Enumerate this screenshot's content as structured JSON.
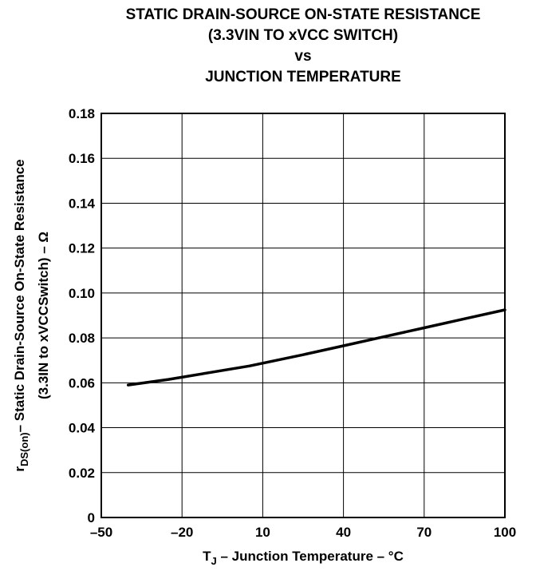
{
  "chart_data": {
    "type": "line",
    "title_lines": [
      "STATIC DRAIN-SOURCE ON-STATE RESISTANCE",
      "(3.3VIN TO xVCC SWITCH)",
      "vs",
      "JUNCTION TEMPERATURE"
    ],
    "xlabel": {
      "prefix": "T",
      "subscript": "J",
      "rest": " – Junction Temperature – °C"
    },
    "ylabel": {
      "line1_prefix": "r",
      "line1_subscript": "DS(on)",
      "line1_rest": "– Static Drain-Source On-State Resistance",
      "line2": "(3.3IN to xVCCSwitch) – Ω"
    },
    "xlim": [
      -50,
      100
    ],
    "ylim": [
      0,
      0.18
    ],
    "x_ticks": [
      {
        "value": -50,
        "label": "–50"
      },
      {
        "value": -20,
        "label": "–20"
      },
      {
        "value": 10,
        "label": "10"
      },
      {
        "value": 40,
        "label": "40"
      },
      {
        "value": 70,
        "label": "70"
      },
      {
        "value": 100,
        "label": "100"
      }
    ],
    "y_ticks": [
      {
        "value": 0,
        "label": "0"
      },
      {
        "value": 0.02,
        "label": "0.02"
      },
      {
        "value": 0.04,
        "label": "0.04"
      },
      {
        "value": 0.06,
        "label": "0.06"
      },
      {
        "value": 0.08,
        "label": "0.08"
      },
      {
        "value": 0.1,
        "label": "0.10"
      },
      {
        "value": 0.12,
        "label": "0.12"
      },
      {
        "value": 0.14,
        "label": "0.14"
      },
      {
        "value": 0.16,
        "label": "0.16"
      },
      {
        "value": 0.18,
        "label": "0.18"
      }
    ],
    "grid": true,
    "series": [
      {
        "x": [
          -40,
          -25,
          -10,
          5,
          25,
          40,
          55,
          70,
          85,
          100
        ],
        "y": [
          0.059,
          0.0615,
          0.0645,
          0.0675,
          0.0725,
          0.0765,
          0.0805,
          0.0845,
          0.0885,
          0.0925
        ]
      }
    ]
  }
}
